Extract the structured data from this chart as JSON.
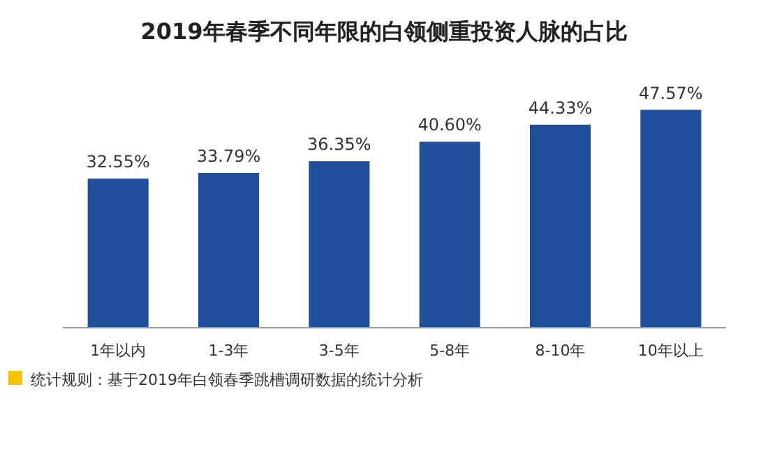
{
  "chart_data": {
    "type": "bar",
    "title": "2019年春季不同年限的白领侧重投资人脉的占比",
    "categories": [
      "1年以内",
      "1-3年",
      "3-5年",
      "5-8年",
      "8-10年",
      "10年以上"
    ],
    "values": [
      32.55,
      33.79,
      36.35,
      40.6,
      44.33,
      47.57
    ],
    "value_labels": [
      "32.55%",
      "33.79%",
      "36.35%",
      "40.60%",
      "44.33%",
      "47.57%"
    ],
    "color": "#1f4e9a",
    "grid": false,
    "annotations": [
      "统计规则：基于2019年白领春季跳槽调研数据的统计分析"
    ]
  }
}
